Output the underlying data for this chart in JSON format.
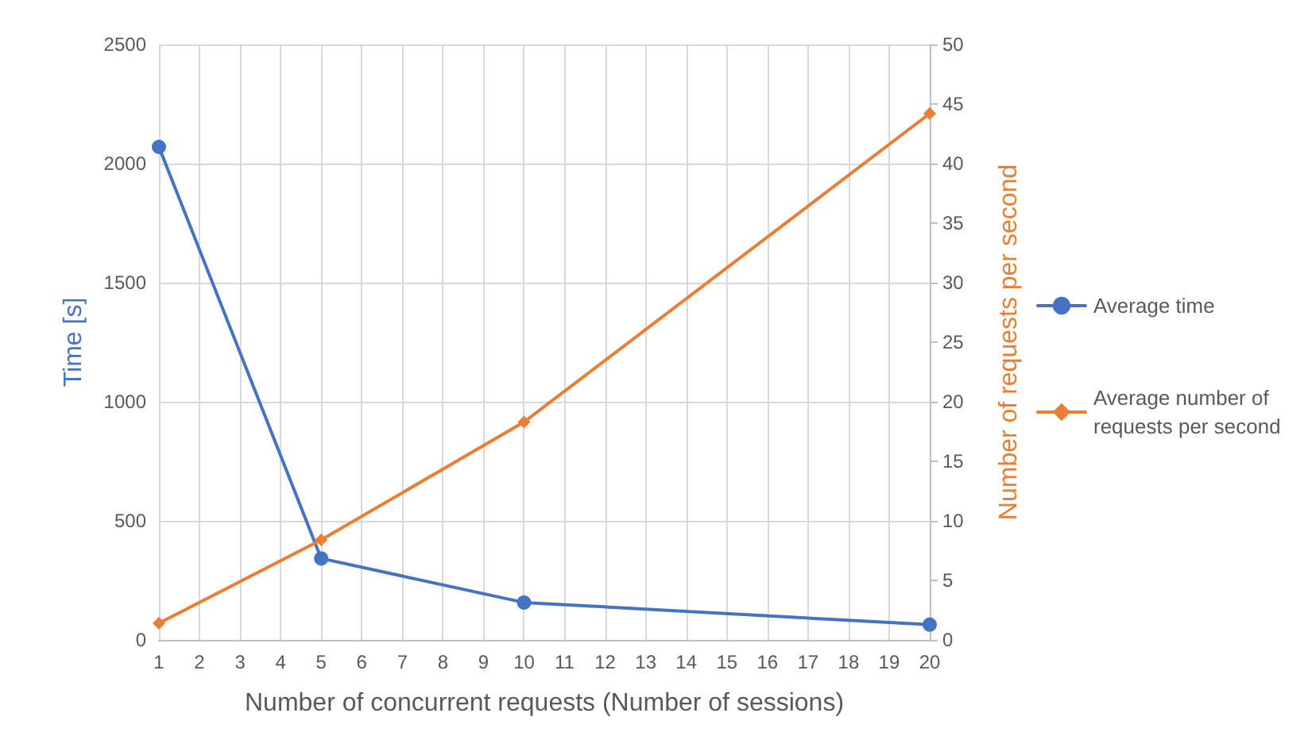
{
  "chart_data": {
    "type": "line",
    "xlabel": "Number of concurrent requests (Number of sessions)",
    "ylabel": "Time [s]",
    "y2label": "Number of requests per second",
    "x": [
      1,
      5,
      10,
      20
    ],
    "series": [
      {
        "name": "Average time",
        "color": "#4472c4",
        "values": [
          2070,
          342,
          157,
          64
        ],
        "marker": "circle"
      },
      {
        "name": "Average number of requests per second",
        "color": "#ed7d31",
        "values": [
          1.4,
          8.4,
          18.3,
          44.2
        ],
        "axis": "y2",
        "marker": "diamond"
      }
    ],
    "xlim": [
      1,
      20
    ],
    "xticks": [
      1,
      2,
      3,
      4,
      5,
      6,
      7,
      8,
      9,
      10,
      11,
      12,
      13,
      14,
      15,
      16,
      17,
      18,
      19,
      20
    ],
    "ylim": [
      0,
      2500
    ],
    "yticks": [
      0,
      500,
      1000,
      1500,
      2000,
      2500
    ],
    "y2lim": [
      0,
      50
    ],
    "y2ticks": [
      0,
      5,
      10,
      15,
      20,
      25,
      30,
      35,
      40,
      45,
      50
    ],
    "grid": true,
    "legend": "right",
    "line_style": "solid"
  }
}
